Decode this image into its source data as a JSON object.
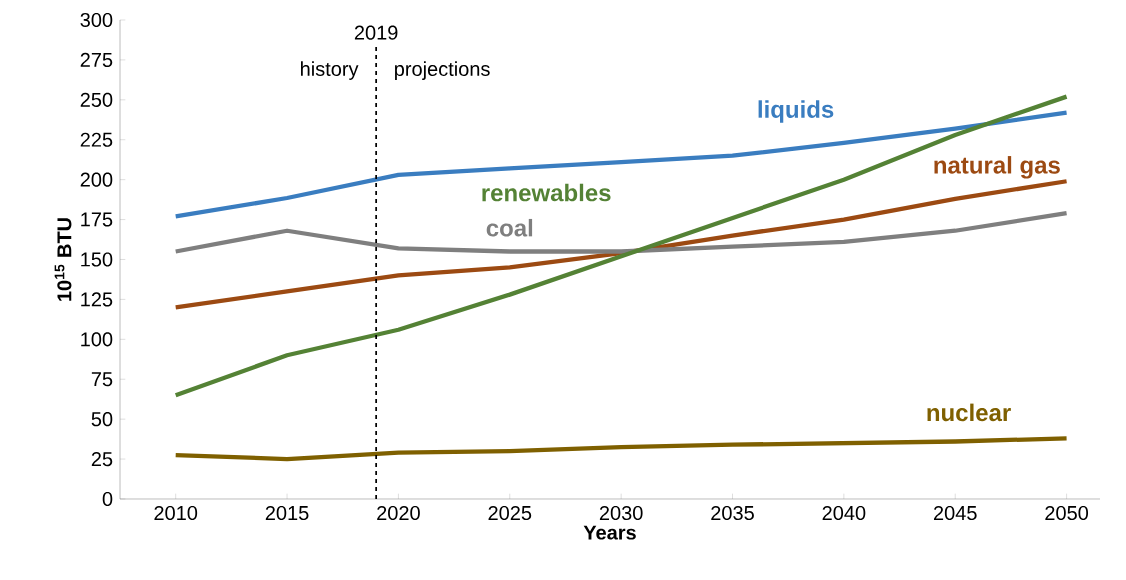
{
  "chart_data": {
    "type": "line",
    "xlabel": "Years",
    "ylabel": "10$^{15}$ BTU",
    "x": [
      2010,
      2015,
      2020,
      2025,
      2030,
      2035,
      2040,
      2045,
      2050
    ],
    "xlim": [
      2007.5,
      2051.5
    ],
    "xticks": [
      2010,
      2015,
      2020,
      2025,
      2030,
      2035,
      2040,
      2045,
      2050
    ],
    "ylim": [
      0,
      300
    ],
    "yticks": [
      0,
      25,
      50,
      75,
      100,
      125,
      150,
      175,
      200,
      225,
      250,
      275,
      300
    ],
    "grid": false,
    "line_style": "solid",
    "marker": "none",
    "series": [
      {
        "name": "liquids",
        "color": "#3a7dc0",
        "values": [
          177,
          188.5,
          203,
          207,
          211,
          215,
          223,
          232,
          242
        ]
      },
      {
        "name": "natural gas",
        "color": "#9c4a12",
        "values": [
          120,
          130,
          140,
          145,
          154,
          165,
          175,
          188,
          199
        ]
      },
      {
        "name": "coal",
        "color": "#7f7f7f",
        "values": [
          155,
          168,
          157,
          155,
          155,
          158,
          161,
          168,
          179
        ]
      },
      {
        "name": "renewables",
        "color": "#548235",
        "values": [
          65,
          90,
          106,
          128,
          152,
          176,
          200,
          228,
          252
        ]
      },
      {
        "name": "nuclear",
        "color": "#7f6000",
        "values": [
          27.5,
          25,
          29,
          30,
          32.5,
          34,
          35,
          36,
          38
        ]
      }
    ],
    "ref_lines": [
      {
        "axis": "x",
        "value": 2019,
        "label": "2019",
        "color": "#000000",
        "line_style": "dashed"
      }
    ],
    "annotations": [
      "history",
      "projections"
    ]
  }
}
